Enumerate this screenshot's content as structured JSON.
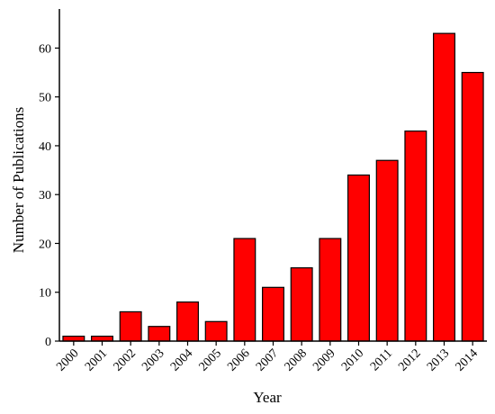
{
  "chart_data": {
    "type": "bar",
    "title": "",
    "xlabel": "Year",
    "ylabel": "Number of Publications",
    "categories": [
      "2000",
      "2001",
      "2002",
      "2003",
      "2004",
      "2005",
      "2006",
      "2007",
      "2008",
      "2009",
      "2010",
      "2011",
      "2012",
      "2013",
      "2014"
    ],
    "values": [
      1,
      1,
      6,
      3,
      8,
      4,
      21,
      11,
      15,
      21,
      34,
      37,
      43,
      63,
      55
    ],
    "ylim": [
      0,
      68
    ],
    "yticks": [
      0,
      10,
      20,
      30,
      40,
      50,
      60
    ],
    "grid": false,
    "colors": {
      "bar": "#ff0000",
      "bar_edge": "#000000",
      "axis": "#000000"
    }
  }
}
